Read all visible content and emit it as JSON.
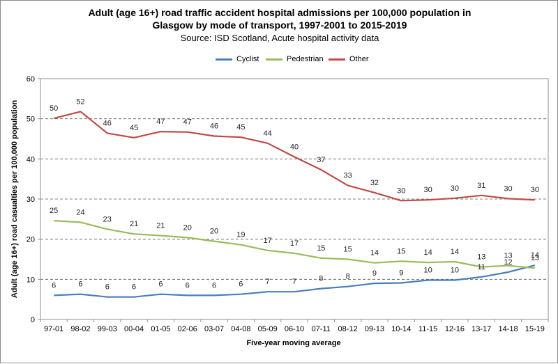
{
  "chart_data": {
    "type": "line",
    "title_line1": "Adult (age 16+) road traffic accident hospital admissions per 100,000 population in",
    "title_line2": "Glasgow by mode of transport, 1997-2001 to 2015-2019",
    "subtitle": "Source: ISD Scotland, Acute hospital activity data",
    "xlabel": "Five-year moving average",
    "ylabel": "Adult (age 16+) road casualties per 100,000 population",
    "ylim": [
      0,
      60
    ],
    "yticks": [
      0,
      10,
      20,
      30,
      40,
      50,
      60
    ],
    "grid": true,
    "legend_position": "top-center",
    "categories": [
      "97-01",
      "98-02",
      "99-03",
      "00-04",
      "01-05",
      "02-06",
      "03-07",
      "04-08",
      "05-09",
      "06-10",
      "07-11",
      "08-12",
      "09-13",
      "10-14",
      "11-15",
      "12-16",
      "13-17",
      "14-18",
      "15-19"
    ],
    "series": [
      {
        "name": "Cyclist",
        "color": "#4a7ebb",
        "values": [
          6.0,
          6.3,
          5.6,
          5.6,
          6.3,
          6.0,
          6.0,
          6.3,
          6.9,
          6.9,
          7.7,
          8.2,
          9.0,
          9.1,
          9.8,
          9.8,
          10.6,
          11.8,
          13.5
        ],
        "labels": [
          "6",
          "6",
          "6",
          "6",
          "6",
          "6",
          "6",
          "6",
          "7",
          "7",
          "8",
          "8",
          "9",
          "9",
          "10",
          "10",
          "11",
          "12",
          "14"
        ]
      },
      {
        "name": "Pedestrian",
        "color": "#9bbb59",
        "values": [
          24.6,
          24.2,
          22.5,
          21.3,
          20.9,
          20.4,
          19.5,
          18.6,
          17.2,
          16.5,
          15.3,
          15.0,
          14.1,
          14.5,
          14.2,
          14.4,
          13.1,
          13.4,
          12.8
        ],
        "labels": [
          "25",
          "24",
          "23",
          "21",
          "21",
          "20",
          "20",
          "19",
          "17",
          "17",
          "15",
          "15",
          "14",
          "15",
          "14",
          "14",
          "13",
          "13",
          "13"
        ]
      },
      {
        "name": "Other",
        "color": "#be4b48",
        "values": [
          50.1,
          51.8,
          46.4,
          45.3,
          46.8,
          46.7,
          45.7,
          45.4,
          43.9,
          40.5,
          37.3,
          33.4,
          31.6,
          29.6,
          29.8,
          30.2,
          30.9,
          30.1,
          29.8
        ],
        "labels": [
          "50",
          "52",
          "46",
          "45",
          "47",
          "47",
          "46",
          "45",
          "44",
          "40",
          "37",
          "33",
          "32",
          "30",
          "30",
          "30",
          "31",
          "30",
          "30"
        ]
      }
    ]
  }
}
